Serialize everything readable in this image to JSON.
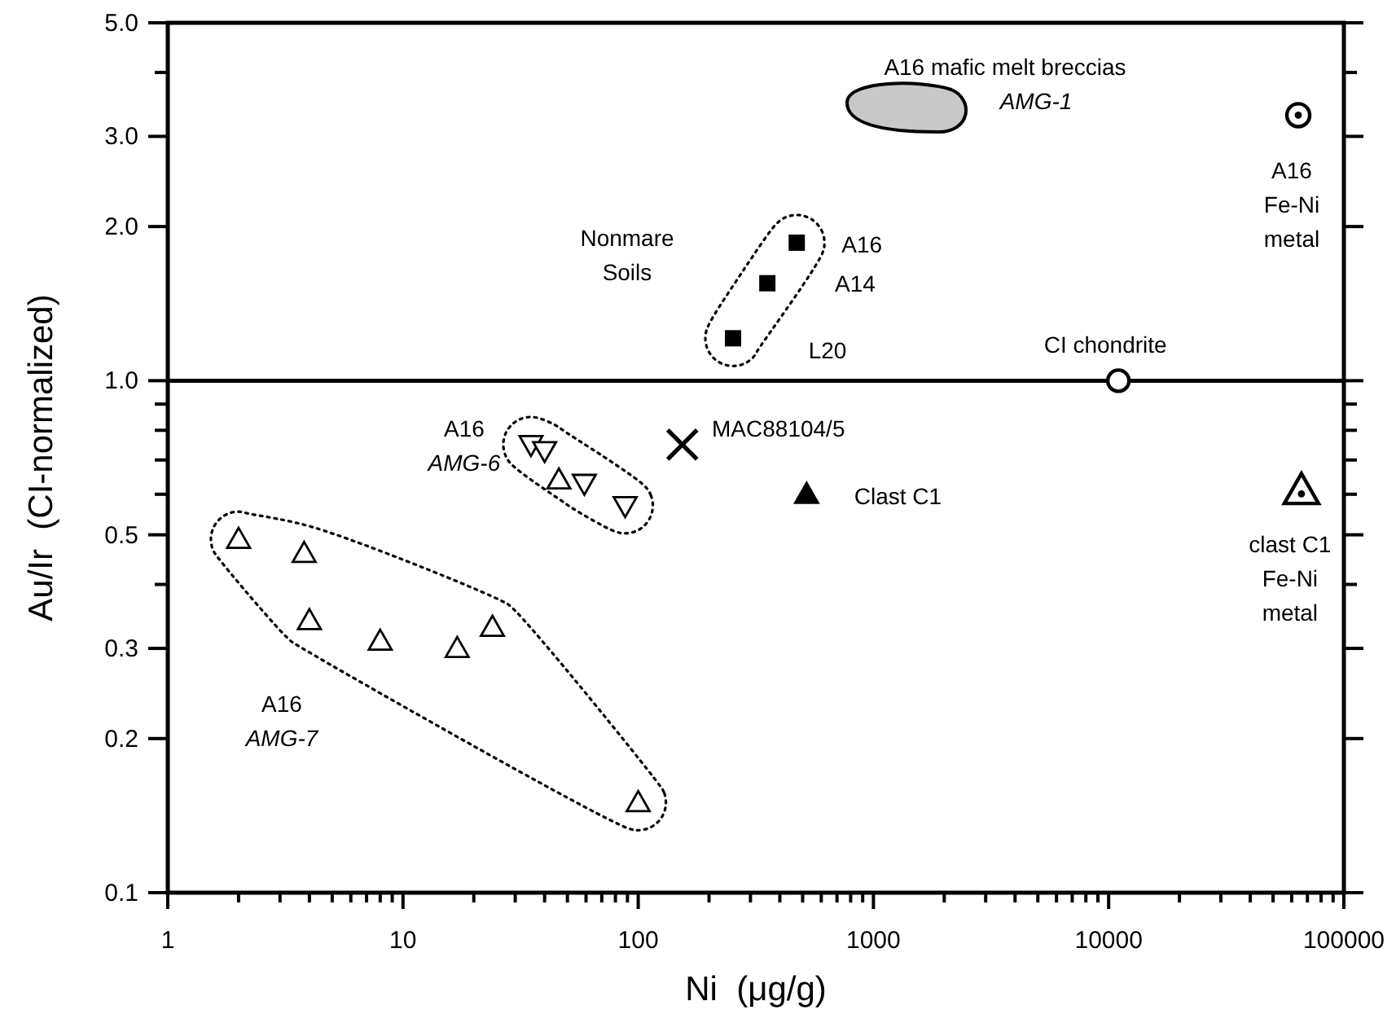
{
  "chart_data": {
    "type": "scatter",
    "xlabel": "Ni  (μg/g)",
    "ylabel": "Au/Ir  (CI-normalized)",
    "log": "xy",
    "grid": false,
    "xlim": [
      1,
      100000
    ],
    "ylim": [
      0.1,
      5
    ],
    "xticks": [
      1,
      {
        "value": 2,
        "label": null
      },
      {
        "value": 3,
        "label": null
      },
      {
        "value": 4,
        "label": null
      },
      {
        "value": 5,
        "label": null
      },
      {
        "value": 6,
        "label": null
      },
      {
        "value": 7,
        "label": null
      },
      {
        "value": 8,
        "label": null
      },
      {
        "value": 9,
        "label": null
      },
      10,
      {
        "value": 20,
        "label": null
      },
      {
        "value": 30,
        "label": null
      },
      {
        "value": 40,
        "label": null
      },
      {
        "value": 50,
        "label": null
      },
      {
        "value": 60,
        "label": null
      },
      {
        "value": 70,
        "label": null
      },
      {
        "value": 80,
        "label": null
      },
      {
        "value": 90,
        "label": null
      },
      100,
      {
        "value": 200,
        "label": null
      },
      {
        "value": 300,
        "label": null
      },
      {
        "value": 400,
        "label": null
      },
      {
        "value": 500,
        "label": null
      },
      {
        "value": 600,
        "label": null
      },
      {
        "value": 700,
        "label": null
      },
      {
        "value": 800,
        "label": null
      },
      {
        "value": 900,
        "label": null
      },
      1000,
      {
        "value": 2000,
        "label": null
      },
      {
        "value": 3000,
        "label": null
      },
      {
        "value": 4000,
        "label": null
      },
      {
        "value": 5000,
        "label": null
      },
      {
        "value": 6000,
        "label": null
      },
      {
        "value": 7000,
        "label": null
      },
      {
        "value": 8000,
        "label": null
      },
      {
        "value": 9000,
        "label": null
      },
      10000,
      {
        "value": 20000,
        "label": null
      },
      {
        "value": 30000,
        "label": null
      },
      {
        "value": 40000,
        "label": null
      },
      {
        "value": 50000,
        "label": null
      },
      {
        "value": 60000,
        "label": null
      },
      {
        "value": 70000,
        "label": null
      },
      {
        "value": 80000,
        "label": null
      },
      {
        "value": 90000,
        "label": null
      },
      100000
    ],
    "yticks": [
      0.1,
      0.2,
      0.3,
      {
        "value": 0.4,
        "label": null
      },
      0.5,
      {
        "value": 0.6,
        "label": null
      },
      {
        "value": 0.7,
        "label": null
      },
      {
        "value": 0.8,
        "label": null
      },
      {
        "value": 0.9,
        "label": null
      },
      {
        "value": 1,
        "label": "1.0"
      },
      {
        "value": 2,
        "label": "2.0"
      },
      {
        "value": 3,
        "label": "3.0"
      },
      {
        "value": 4,
        "label": null
      },
      {
        "value": 5,
        "label": "5.0"
      }
    ],
    "ref_lines": [
      {
        "axis": "y",
        "value": 1,
        "color": "#000000",
        "line_style": "solid"
      }
    ],
    "series": [
      {
        "color": "#000000",
        "marker": "square",
        "x": [
          472,
          354,
          253
        ],
        "values": [
          1.86,
          1.55,
          1.21
        ]
      },
      {
        "color": "#000000",
        "marker": "triangle",
        "x": [
          35,
          40,
          59,
          88
        ],
        "values": [
          0.75,
          0.73,
          0.63,
          0.57
        ]
      },
      {
        "color": "#000000",
        "marker": "triangle",
        "x": [
          2,
          3.8,
          4,
          8,
          17,
          24,
          100
        ],
        "values": [
          0.49,
          0.46,
          0.34,
          0.31,
          0.3,
          0.33,
          0.15
        ]
      },
      {
        "color": "#000000",
        "marker": "triangle",
        "x": [
          46
        ],
        "values": [
          0.64
        ]
      },
      {
        "color": "#000000",
        "marker": "cross",
        "x": [
          154
        ],
        "values": [
          0.75
        ]
      },
      {
        "color": "#000000",
        "marker": "triangle",
        "x": [
          520
        ],
        "values": [
          0.6
        ]
      },
      {
        "color": "#000000",
        "marker": "circle",
        "x": [
          11000
        ],
        "values": [
          1.0
        ]
      },
      {
        "color": "#000000",
        "marker": "circle",
        "x": [
          64000
        ],
        "values": [
          3.3
        ]
      },
      {
        "color": "#000000",
        "marker": "triangle",
        "x": [
          66000
        ],
        "values": [
          0.61
        ]
      }
    ],
    "annotations": [
      "A16 mafic melt breccias",
      "AMG-1",
      {
        "text": "A16\nFe-Ni\nmetal",
        "x": 64000,
        "y": 3.3
      },
      "Nonmare\nSoils",
      {
        "text": "A16",
        "x": 472,
        "y": 1.86
      },
      "A14",
      "L20",
      {
        "text": "CI chondrite",
        "x": 11000,
        "y": 1.0
      },
      {
        "text": "A16\nAMG-6",
        "x": 35,
        "y": 0.75
      },
      {
        "text": "MAC88104/5",
        "x": 154,
        "y": 0.75
      },
      {
        "text": "Clast C1",
        "x": 520,
        "y": 0.6
      },
      {
        "text": "clast C1\nFe-Ni\nmetal",
        "x": 66000,
        "y": 0.61
      },
      "A16\nAMG-7"
    ]
  }
}
